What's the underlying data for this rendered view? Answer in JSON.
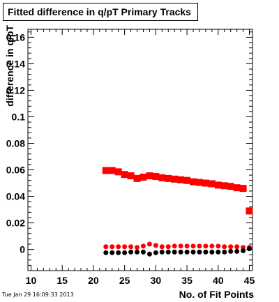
{
  "chart_data": {
    "type": "scatter",
    "title": "Fitted difference in q/pT Primary Tracks",
    "xlabel": "No. of Fit Points",
    "ylabel": "difference in q/pT",
    "xlim": [
      9.5,
      45.5
    ],
    "ylim": [
      -0.016,
      0.166
    ],
    "x_ticks": [
      10,
      15,
      20,
      25,
      30,
      35,
      40,
      45
    ],
    "x_tick_labels": [
      "10",
      "15",
      "20",
      "25",
      "30",
      "35",
      "40",
      "45"
    ],
    "y_ticks": [
      0,
      0.02,
      0.04,
      0.06,
      0.08,
      0.1,
      0.12,
      0.14,
      0.16
    ],
    "y_tick_labels": [
      "0",
      "0.02",
      "0.04",
      "0.06",
      "0.08",
      "0.1",
      "0.12",
      "0.14",
      "0.16"
    ],
    "grid": false,
    "series": [
      {
        "color": "#ff0000",
        "marker": "square",
        "x": [
          22,
          23,
          24,
          25,
          26,
          27,
          28,
          29,
          30,
          31,
          32,
          33,
          34,
          35,
          36,
          37,
          38,
          39,
          40,
          41,
          42,
          43,
          44,
          45
        ],
        "y": [
          0.0595,
          0.0595,
          0.0585,
          0.0565,
          0.0555,
          0.0535,
          0.0545,
          0.0555,
          0.055,
          0.054,
          0.0535,
          0.053,
          0.0525,
          0.052,
          0.051,
          0.0505,
          0.05,
          0.0495,
          0.0485,
          0.048,
          0.0475,
          0.0465,
          0.046,
          0.029
        ]
      },
      {
        "color": "#ff0000",
        "marker": "circle",
        "x": [
          22,
          23,
          24,
          25,
          26,
          27,
          28,
          29,
          30,
          31,
          32,
          33,
          34,
          35,
          36,
          37,
          38,
          39,
          40,
          41,
          42,
          43,
          44,
          45
        ],
        "y": [
          0.002,
          0.002,
          0.002,
          0.002,
          0.002,
          0.0015,
          0.0025,
          0.004,
          0.003,
          0.002,
          0.002,
          0.0025,
          0.0025,
          0.0025,
          0.0025,
          0.0025,
          0.0025,
          0.0025,
          0.0025,
          0.002,
          0.002,
          0.002,
          0.0015,
          0.0015
        ]
      },
      {
        "color": "#000000",
        "marker": "circle",
        "x": [
          22,
          23,
          24,
          25,
          26,
          27,
          28,
          29,
          30,
          31,
          32,
          33,
          34,
          35,
          36,
          37,
          38,
          39,
          40,
          41,
          42,
          43,
          44,
          45
        ],
        "y": [
          -0.0025,
          -0.0025,
          -0.0025,
          -0.0025,
          -0.002,
          -0.002,
          -0.002,
          -0.0035,
          -0.0025,
          -0.002,
          -0.002,
          -0.002,
          -0.002,
          -0.002,
          -0.002,
          -0.002,
          -0.002,
          -0.002,
          -0.002,
          -0.002,
          -0.0015,
          -0.0015,
          -0.001,
          0.0005
        ]
      }
    ]
  },
  "timestamp": "Tue Jan 29 16:09:33 2013"
}
